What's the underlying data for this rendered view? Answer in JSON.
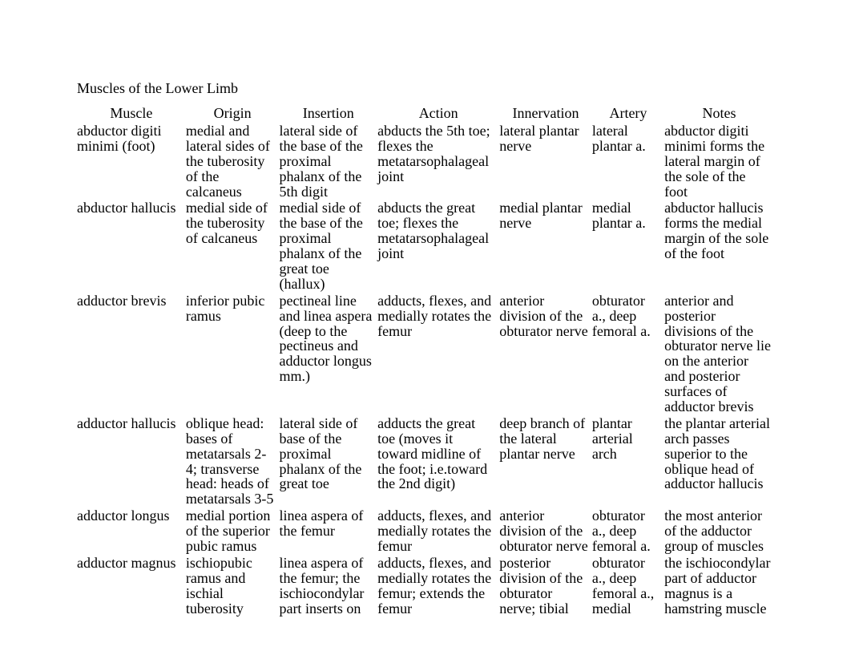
{
  "title": "Muscles of the Lower Limb",
  "columns": [
    "Muscle",
    "Origin",
    "Insertion",
    "Action",
    "Innervation",
    "Artery",
    "Notes"
  ],
  "rows": [
    {
      "muscle": "abductor digiti minimi (foot)",
      "origin": "medial and lateral sides of the tuberosity of the calcaneus",
      "insertion": "lateral side of the base of the proximal phalanx of the 5th digit",
      "action": "abducts the 5th toe; flexes the metatarsophalageal joint",
      "innervation": "lateral plantar nerve",
      "artery": "lateral plantar a.",
      "notes": "abductor digiti minimi forms the lateral margin of the sole of the foot"
    },
    {
      "muscle": "abductor hallucis",
      "origin": "medial side of the tuberosity of calcaneus",
      "insertion": "medial side of the base of the proximal phalanx of the great toe (hallux)",
      "action": "abducts the great toe; flexes the metatarsophalageal joint",
      "innervation": "medial plantar nerve",
      "artery": "medial plantar a.",
      "notes": "abductor hallucis forms the medial margin of the sole of the foot"
    },
    {
      "muscle": "adductor brevis",
      "origin": "inferior pubic ramus",
      "insertion": "pectineal line and linea aspera (deep to the pectineus and adductor longus mm.)",
      "action": "adducts, flexes, and medially rotates the femur",
      "innervation": "anterior division of the obturator nerve",
      "artery": "obturator a., deep femoral a.",
      "notes": "anterior and posterior divisions of the obturator nerve lie on the anterior and posterior surfaces of adductor brevis"
    },
    {
      "muscle": "adductor hallucis",
      "origin": "oblique head: bases of metatarsals 2-4; transverse head: heads of metatarsals 3-5",
      "insertion": "lateral side of base of the proximal phalanx of the great toe",
      "action": "adducts the great toe (moves it toward midline of the foot; i.e.toward the 2nd digit)",
      "innervation": "deep branch of the lateral plantar nerve",
      "artery": "plantar arterial arch",
      "notes": "the plantar arterial arch passes superior to the oblique head of adductor hallucis"
    },
    {
      "muscle": "adductor longus",
      "origin": "medial portion of the superior pubic ramus",
      "insertion": "linea aspera of the femur",
      "action": "adducts, flexes, and medially rotates the femur",
      "innervation": "anterior division of the obturator nerve",
      "artery": "obturator a., deep femoral a.",
      "notes": "the most anterior of the adductor group of muscles"
    },
    {
      "muscle": "adductor magnus",
      "origin": "ischiopubic ramus and ischial tuberosity",
      "insertion": "linea aspera of the femur; the ischiocondylar part inserts on",
      "action": "adducts, flexes, and medially rotates the femur; extends the femur",
      "innervation": "posterior division of the obturator nerve; tibial",
      "artery": "obturator a., deep femoral a., medial",
      "notes": "the ischiocondylar part of adductor magnus is a hamstring muscle"
    }
  ]
}
